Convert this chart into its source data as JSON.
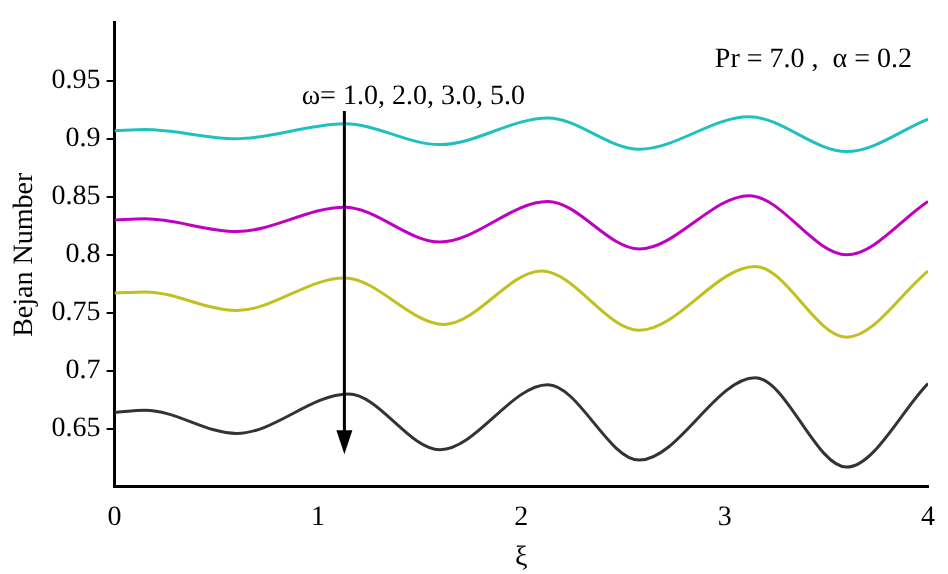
{
  "chart_data": {
    "type": "line",
    "xlabel": "ξ",
    "ylabel": "Bejan Number",
    "annotations": [
      "ω= 1.0, 2.0, 3.0, 5.0",
      "Pr = 7.0 ,  α = 0.2"
    ],
    "xlim": [
      0,
      4
    ],
    "xticks": [
      0,
      1,
      2,
      3,
      4
    ],
    "ylim": [
      0.6,
      1.0
    ],
    "yticks": [
      0.65,
      0.7,
      0.75,
      0.8,
      0.85,
      0.9,
      0.95
    ],
    "grid": false,
    "legend": false,
    "marker": "none",
    "line_style": "solid",
    "series": [
      {
        "color": "#20c0c0",
        "x": [
          0,
          0.15,
          0.6,
          1.13,
          1.6,
          2.13,
          2.58,
          3.12,
          3.6,
          4
        ],
        "values": [
          0.907,
          0.908,
          0.9,
          0.913,
          0.895,
          0.918,
          0.891,
          0.919,
          0.889,
          0.917
        ]
      },
      {
        "color": "#c000c0",
        "x": [
          0,
          0.15,
          0.6,
          1.13,
          1.6,
          2.13,
          2.58,
          3.12,
          3.6,
          4
        ],
        "values": [
          0.83,
          0.831,
          0.82,
          0.841,
          0.811,
          0.846,
          0.805,
          0.851,
          0.8,
          0.846
        ]
      },
      {
        "color": "#c0c020",
        "x": [
          0,
          0.15,
          0.6,
          1.13,
          1.62,
          2.1,
          2.58,
          3.15,
          3.6,
          4
        ],
        "values": [
          0.767,
          0.768,
          0.752,
          0.78,
          0.74,
          0.786,
          0.735,
          0.79,
          0.729,
          0.786
        ]
      },
      {
        "color": "#333333",
        "x": [
          0,
          0.15,
          0.6,
          1.15,
          1.6,
          2.13,
          2.58,
          3.15,
          3.6,
          4
        ],
        "values": [
          0.664,
          0.666,
          0.646,
          0.68,
          0.632,
          0.688,
          0.623,
          0.694,
          0.617,
          0.689
        ]
      }
    ]
  }
}
